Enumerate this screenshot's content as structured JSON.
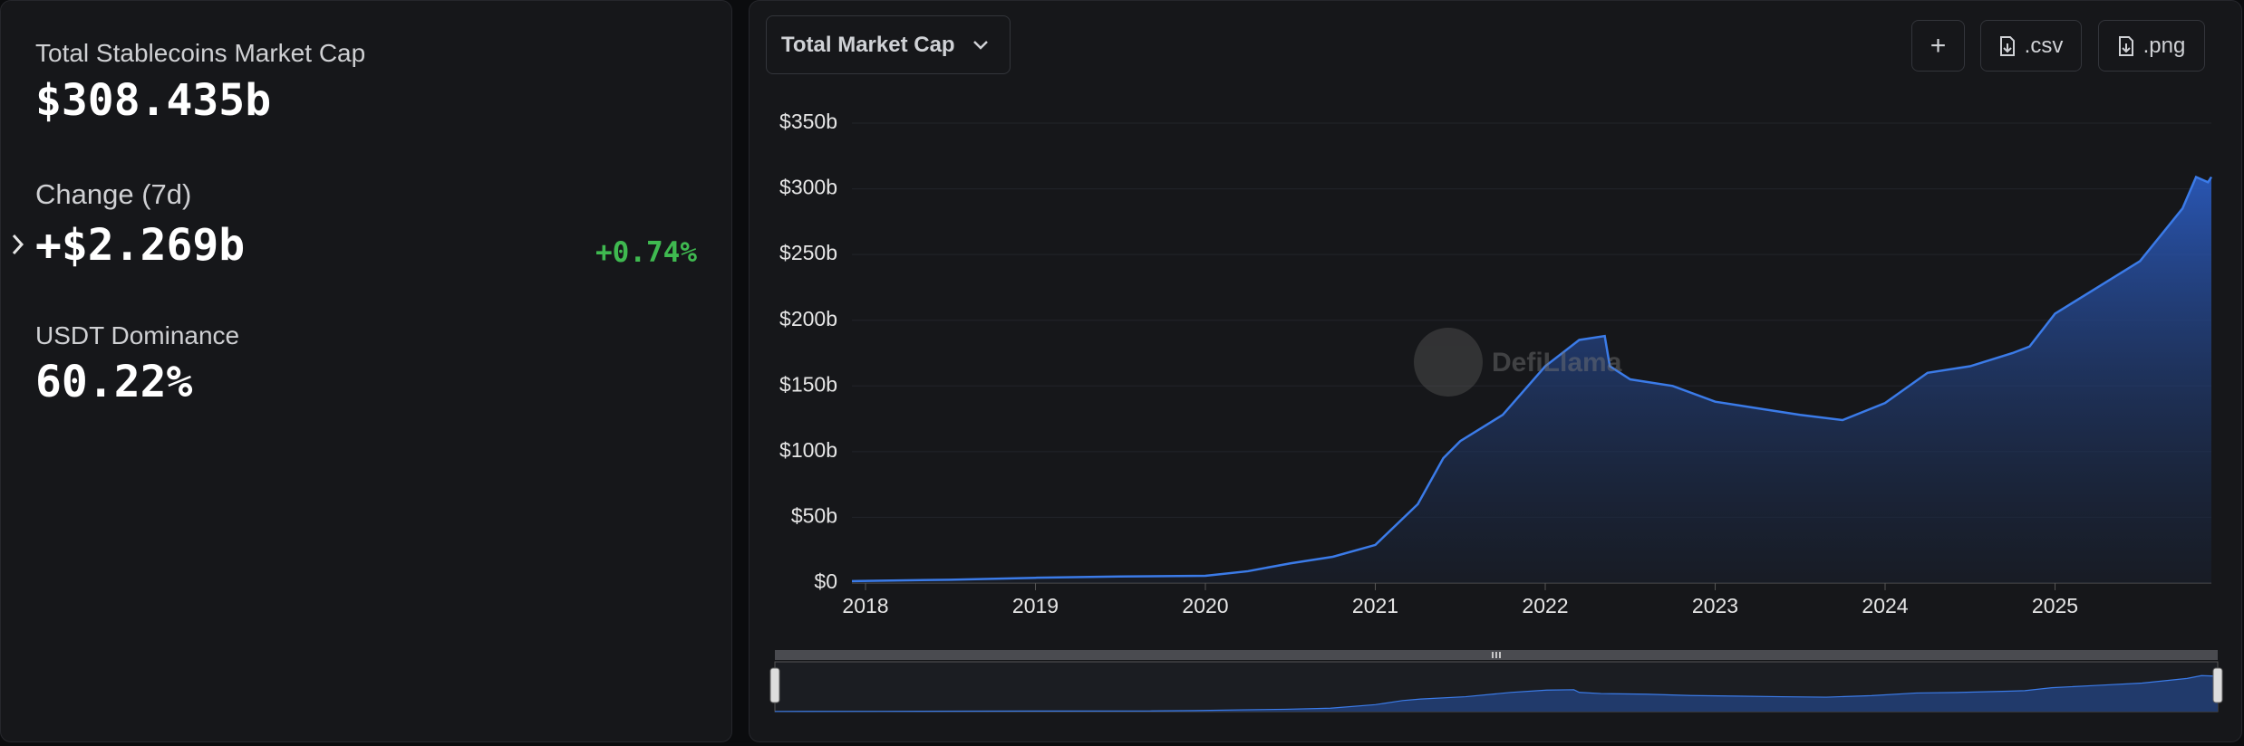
{
  "stats": {
    "total_label": "Total Stablecoins Market Cap",
    "total_value": "$308.435b",
    "change_label": "Change (7d)",
    "change_value": "+$2.269b",
    "change_pct": "+0.74%",
    "dominance_label": "USDT Dominance",
    "dominance_value": "60.22%"
  },
  "controls": {
    "dropdown": "Total Market Cap",
    "add": "+",
    "csv": ".csv",
    "png": ".png"
  },
  "watermark": "DefiLlama",
  "chart_data": {
    "type": "area",
    "color": "#3b7be8",
    "x": [
      2017.92,
      2018.5,
      2019.0,
      2019.5,
      2020.0,
      2020.25,
      2020.5,
      2020.75,
      2021.0,
      2021.25,
      2021.4,
      2021.5,
      2021.75,
      2022.0,
      2022.2,
      2022.35,
      2022.38,
      2022.5,
      2022.75,
      2023.0,
      2023.25,
      2023.5,
      2023.75,
      2024.0,
      2024.25,
      2024.5,
      2024.75,
      2024.85,
      2025.0,
      2025.25,
      2025.5,
      2025.75,
      2025.83,
      2025.9,
      2025.92
    ],
    "values": [
      1.5,
      2.5,
      4,
      5,
      5.5,
      9,
      15,
      20,
      29,
      60,
      95,
      108,
      128,
      165,
      185,
      188,
      165,
      155,
      150,
      138,
      133,
      128,
      124,
      137,
      160,
      165,
      175,
      180,
      205,
      225,
      245,
      285,
      309,
      305,
      309
    ],
    "xlim": [
      2017.92,
      2025.92
    ],
    "xticks": [
      2018,
      2019,
      2020,
      2021,
      2022,
      2023,
      2024,
      2025
    ],
    "ylim": [
      0,
      350
    ],
    "yticks": [
      {
        "value": 0,
        "label": "$0"
      },
      {
        "value": 50,
        "label": "$50b"
      },
      {
        "value": 100,
        "label": "$100b"
      },
      {
        "value": 150,
        "label": "$150b"
      },
      {
        "value": 200,
        "label": "$200b"
      },
      {
        "value": 250,
        "label": "$250b"
      },
      {
        "value": 300,
        "label": "$300b"
      },
      {
        "value": 350,
        "label": "$350b"
      }
    ],
    "grid": true
  }
}
